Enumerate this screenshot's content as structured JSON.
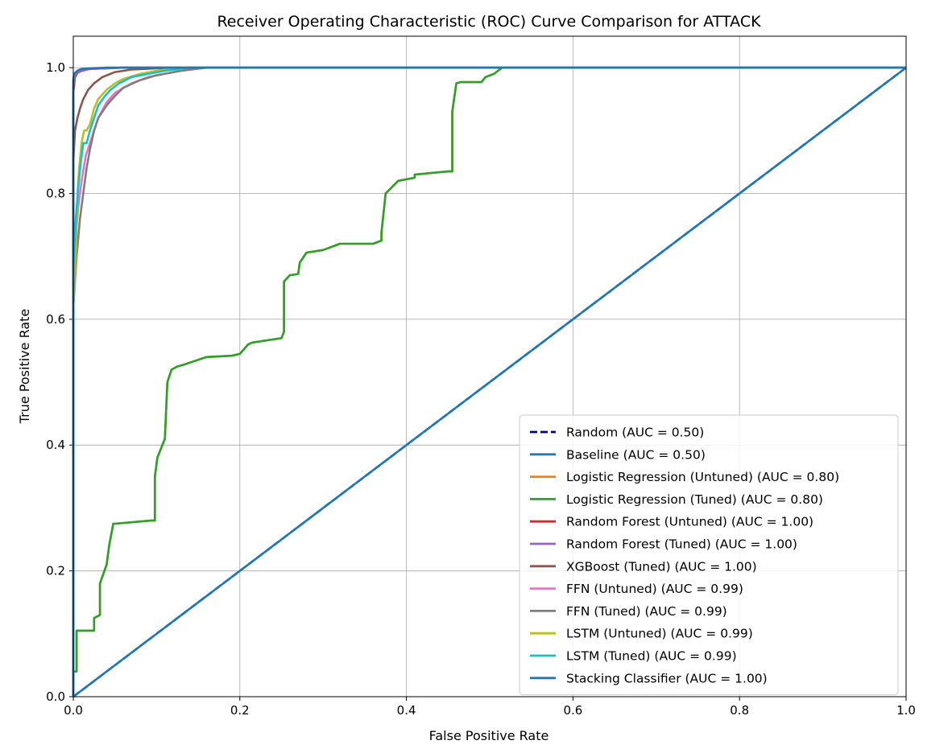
{
  "chart_data": {
    "type": "line",
    "title": "Receiver Operating Characteristic (ROC) Curve Comparison for ATTACK",
    "xlabel": "False Positive Rate",
    "ylabel": "True Positive Rate",
    "xlim": [
      0.0,
      1.0
    ],
    "ylim": [
      0.0,
      1.05
    ],
    "xticks": [
      0.0,
      0.2,
      0.4,
      0.6,
      0.8,
      1.0
    ],
    "yticks": [
      0.0,
      0.2,
      0.4,
      0.6,
      0.8,
      1.0
    ],
    "xtick_labels": [
      "0.0",
      "0.2",
      "0.4",
      "0.6",
      "0.8",
      "1.0"
    ],
    "ytick_labels": [
      "0.0",
      "0.2",
      "0.4",
      "0.6",
      "0.8",
      "1.0"
    ],
    "grid": true,
    "legend_position": "lower-right",
    "series": [
      {
        "name": "Random (AUC = 0.50)",
        "color": "#000080",
        "dashed": true,
        "x": [
          0,
          1
        ],
        "y": [
          0,
          1
        ]
      },
      {
        "name": "Baseline (AUC = 0.50)",
        "color": "#1f77b4",
        "dashed": false,
        "x": [
          0,
          1
        ],
        "y": [
          0,
          1
        ]
      },
      {
        "name": "Logistic Regression (Untuned) (AUC = 0.80)",
        "color": "#ff7f0e",
        "dashed": false,
        "x": [
          0,
          0,
          0.004,
          0.004,
          0.025,
          0.025,
          0.032,
          0.032,
          0.04,
          0.043,
          0.048,
          0.05,
          0.093,
          0.098,
          0.098,
          0.101,
          0.11,
          0.113,
          0.118,
          0.125,
          0.133,
          0.16,
          0.19,
          0.2,
          0.21,
          0.215,
          0.24,
          0.25,
          0.253,
          0.253,
          0.26,
          0.27,
          0.272,
          0.28,
          0.3,
          0.32,
          0.36,
          0.37,
          0.37,
          0.375,
          0.39,
          0.41,
          0.41,
          0.45,
          0.455,
          0.455,
          0.46,
          0.465,
          0.49,
          0.495,
          0.505,
          0.51,
          0.515,
          1.0
        ],
        "y": [
          0,
          0.04,
          0.04,
          0.105,
          0.105,
          0.125,
          0.13,
          0.18,
          0.21,
          0.24,
          0.275,
          0.275,
          0.28,
          0.28,
          0.35,
          0.38,
          0.41,
          0.5,
          0.52,
          0.525,
          0.528,
          0.54,
          0.542,
          0.545,
          0.56,
          0.563,
          0.568,
          0.57,
          0.58,
          0.66,
          0.67,
          0.672,
          0.69,
          0.706,
          0.71,
          0.72,
          0.72,
          0.725,
          0.738,
          0.8,
          0.82,
          0.825,
          0.83,
          0.835,
          0.835,
          0.93,
          0.975,
          0.977,
          0.977,
          0.985,
          0.99,
          0.995,
          1.0,
          1.0
        ]
      },
      {
        "name": "Logistic Regression (Tuned) (AUC = 0.80)",
        "color": "#2ca02c",
        "dashed": false,
        "x": [
          0,
          0,
          0.004,
          0.004,
          0.025,
          0.025,
          0.032,
          0.032,
          0.04,
          0.043,
          0.048,
          0.05,
          0.093,
          0.098,
          0.098,
          0.101,
          0.11,
          0.113,
          0.118,
          0.125,
          0.133,
          0.16,
          0.19,
          0.2,
          0.21,
          0.215,
          0.24,
          0.25,
          0.253,
          0.253,
          0.26,
          0.27,
          0.272,
          0.28,
          0.3,
          0.32,
          0.36,
          0.37,
          0.37,
          0.375,
          0.39,
          0.41,
          0.41,
          0.45,
          0.455,
          0.455,
          0.46,
          0.465,
          0.49,
          0.495,
          0.505,
          0.51,
          0.515,
          1.0
        ],
        "y": [
          0,
          0.04,
          0.04,
          0.105,
          0.105,
          0.125,
          0.13,
          0.18,
          0.21,
          0.24,
          0.275,
          0.275,
          0.28,
          0.28,
          0.35,
          0.38,
          0.41,
          0.5,
          0.52,
          0.525,
          0.528,
          0.54,
          0.542,
          0.545,
          0.56,
          0.563,
          0.568,
          0.57,
          0.58,
          0.66,
          0.67,
          0.672,
          0.69,
          0.706,
          0.71,
          0.72,
          0.72,
          0.725,
          0.738,
          0.8,
          0.82,
          0.825,
          0.83,
          0.835,
          0.835,
          0.93,
          0.975,
          0.977,
          0.977,
          0.985,
          0.99,
          0.995,
          1.0,
          1.0
        ]
      },
      {
        "name": "Random Forest (Untuned) (AUC = 1.00)",
        "color": "#d62728",
        "dashed": false,
        "x": [
          0,
          0,
          0.002,
          0.005,
          0.01,
          0.02,
          0.04,
          0.06,
          1.0
        ],
        "y": [
          0,
          0.96,
          0.985,
          0.992,
          0.995,
          0.998,
          0.999,
          1.0,
          1.0
        ]
      },
      {
        "name": "Random Forest (Tuned) (AUC = 1.00)",
        "color": "#9467bd",
        "dashed": false,
        "x": [
          0,
          0,
          0.002,
          0.005,
          0.01,
          0.02,
          0.04,
          0.06,
          1.0
        ],
        "y": [
          0,
          0.97,
          0.988,
          0.993,
          0.996,
          0.998,
          0.999,
          1.0,
          1.0
        ]
      },
      {
        "name": "XGBoost (Tuned) (AUC = 1.00)",
        "color": "#8c564b",
        "dashed": false,
        "x": [
          0,
          0,
          0.002,
          0.005,
          0.008,
          0.012,
          0.018,
          0.025,
          0.035,
          0.05,
          0.07,
          0.1,
          0.15,
          1.0
        ],
        "y": [
          0,
          0.85,
          0.9,
          0.92,
          0.935,
          0.95,
          0.965,
          0.975,
          0.985,
          0.993,
          0.997,
          0.999,
          1.0,
          1.0
        ]
      },
      {
        "name": "FFN (Untuned) (AUC = 0.99)",
        "color": "#e377c2",
        "dashed": false,
        "x": [
          0,
          0,
          0.003,
          0.006,
          0.01,
          0.015,
          0.02,
          0.025,
          0.03,
          0.04,
          0.05,
          0.07,
          0.09,
          0.12,
          0.15,
          1.0
        ],
        "y": [
          0,
          0.65,
          0.73,
          0.78,
          0.82,
          0.86,
          0.88,
          0.9,
          0.92,
          0.945,
          0.96,
          0.975,
          0.985,
          0.993,
          1.0,
          1.0
        ]
      },
      {
        "name": "FFN (Tuned) (AUC = 0.99)",
        "color": "#7f7f7f",
        "dashed": false,
        "x": [
          0,
          0,
          0.004,
          0.008,
          0.012,
          0.016,
          0.02,
          0.025,
          0.03,
          0.04,
          0.05,
          0.06,
          0.08,
          0.1,
          0.13,
          0.16,
          1.0
        ],
        "y": [
          0,
          0.62,
          0.7,
          0.76,
          0.8,
          0.84,
          0.87,
          0.9,
          0.92,
          0.94,
          0.955,
          0.968,
          0.98,
          0.988,
          0.995,
          1.0,
          1.0
        ]
      },
      {
        "name": "LSTM (Untuned) (AUC = 0.99)",
        "color": "#bcbd22",
        "dashed": false,
        "x": [
          0,
          0,
          0.003,
          0.005,
          0.007,
          0.01,
          0.013,
          0.016,
          0.02,
          0.025,
          0.03,
          0.04,
          0.05,
          0.06,
          0.08,
          0.1,
          0.13,
          1.0
        ],
        "y": [
          0,
          0.62,
          0.7,
          0.8,
          0.84,
          0.88,
          0.9,
          0.9,
          0.91,
          0.935,
          0.95,
          0.965,
          0.975,
          0.982,
          0.99,
          0.995,
          1.0,
          1.0
        ]
      },
      {
        "name": "LSTM (Tuned) (AUC = 0.99)",
        "color": "#17becf",
        "dashed": false,
        "x": [
          0,
          0,
          0.003,
          0.006,
          0.009,
          0.012,
          0.016,
          0.02,
          0.025,
          0.03,
          0.038,
          0.045,
          0.055,
          0.07,
          0.09,
          0.11,
          0.14,
          1.0
        ],
        "y": [
          0,
          0.68,
          0.76,
          0.81,
          0.85,
          0.88,
          0.88,
          0.9,
          0.92,
          0.94,
          0.955,
          0.965,
          0.975,
          0.985,
          0.99,
          0.995,
          1.0,
          1.0
        ]
      },
      {
        "name": "Stacking Classifier (AUC = 1.00)",
        "color": "#1f77b4",
        "dashed": false,
        "x": [
          0,
          0,
          0.001,
          0.003,
          0.006,
          0.01,
          0.02,
          0.04,
          1.0
        ],
        "y": [
          0,
          0.98,
          0.99,
          0.993,
          0.996,
          0.998,
          0.999,
          1.0,
          1.0
        ]
      }
    ]
  }
}
